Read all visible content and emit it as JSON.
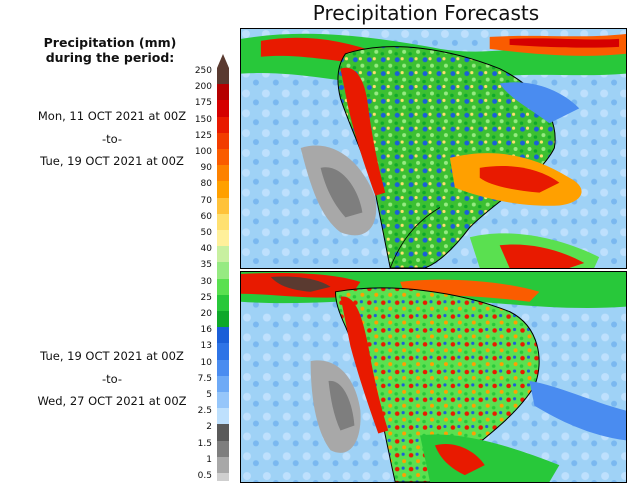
{
  "title": "Precipitation Forecasts",
  "legend": {
    "heading_line1": "Precipitation (mm)",
    "heading_line2": "during the period:",
    "ticks": [
      {
        "label": "250",
        "color": "#5a3a30"
      },
      {
        "label": "200",
        "color": "#b50000"
      },
      {
        "label": "175",
        "color": "#d50000"
      },
      {
        "label": "150",
        "color": "#e81a00"
      },
      {
        "label": "125",
        "color": "#f23d00"
      },
      {
        "label": "100",
        "color": "#fa5c00"
      },
      {
        "label": "90",
        "color": "#fd8200"
      },
      {
        "label": "80",
        "color": "#ffa000"
      },
      {
        "label": "70",
        "color": "#ffc23a"
      },
      {
        "label": "60",
        "color": "#ffe070"
      },
      {
        "label": "50",
        "color": "#fff09a"
      },
      {
        "label": "40",
        "color": "#c8f0a0"
      },
      {
        "label": "35",
        "color": "#96ea82"
      },
      {
        "label": "30",
        "color": "#5ae050"
      },
      {
        "label": "25",
        "color": "#28c83a"
      },
      {
        "label": "20",
        "color": "#0ea82a"
      },
      {
        "label": "16",
        "color": "#1a5fd8"
      },
      {
        "label": "13",
        "color": "#2e74e6"
      },
      {
        "label": "10",
        "color": "#4a8cf0"
      },
      {
        "label": "7.5",
        "color": "#6eaaf6"
      },
      {
        "label": "5",
        "color": "#96c6fa"
      },
      {
        "label": "2.5",
        "color": "#bee0fd"
      },
      {
        "label": "2",
        "color": "#5a5a5a"
      },
      {
        "label": "1.5",
        "color": "#7e7e7e"
      },
      {
        "label": "1",
        "color": "#a8a8a8"
      },
      {
        "label": "0.5",
        "color": "#cfcfcf"
      }
    ]
  },
  "periods": [
    {
      "start": "Mon, 11 OCT 2021 at 00Z",
      "separator": "-to-",
      "end": "Tue, 19 OCT 2021 at 00Z"
    },
    {
      "start": "Tue, 19 OCT 2021 at 00Z",
      "separator": "-to-",
      "end": "Wed, 27 OCT 2021 at 00Z"
    }
  ],
  "colors": {
    "ocean_light": "#bfe3fa",
    "ocean_mid": "#8cc8f2",
    "land_green": "#4ec83c",
    "heavy_red": "#d81e05"
  }
}
